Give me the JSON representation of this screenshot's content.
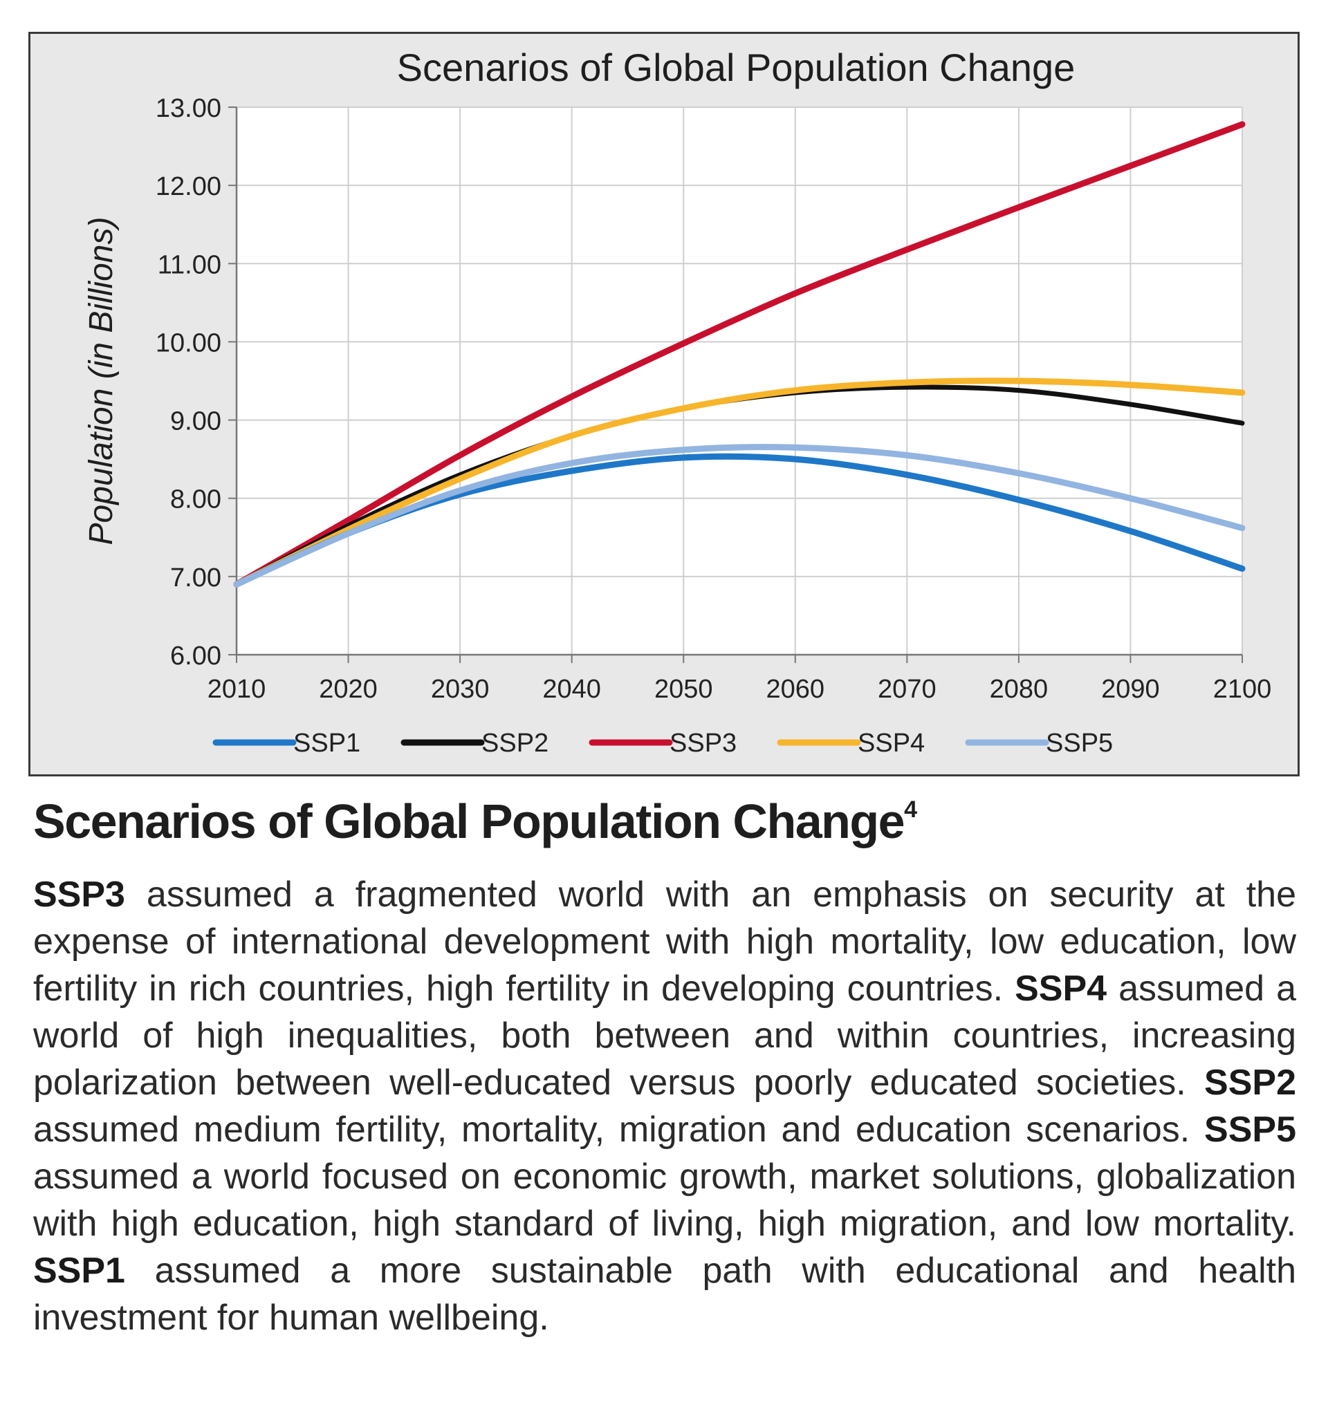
{
  "chart_data": {
    "type": "line",
    "title": "Scenarios of Global Population Change",
    "ylabel": "Population (in Billions)",
    "xlabel": "",
    "xlim": [
      2010,
      2100
    ],
    "ylim": [
      6,
      13
    ],
    "x_ticks": [
      "2010",
      "2020",
      "2030",
      "2040",
      "2050",
      "2060",
      "2070",
      "2080",
      "2090",
      "2100"
    ],
    "y_ticks": [
      "6.00",
      "7.00",
      "8.00",
      "9.00",
      "10.00",
      "11.00",
      "12.00",
      "13.00"
    ],
    "grid": true,
    "legend_position": "bottom",
    "x": [
      2010,
      2020,
      2030,
      2040,
      2050,
      2060,
      2070,
      2080,
      2090,
      2100
    ],
    "series": [
      {
        "name": "SSP1",
        "color": "#1f77c8",
        "values": [
          6.9,
          7.55,
          8.05,
          8.35,
          8.52,
          8.5,
          8.3,
          7.98,
          7.58,
          7.1
        ]
      },
      {
        "name": "SSP2",
        "color": "#111111",
        "values": [
          6.9,
          7.65,
          8.3,
          8.8,
          9.15,
          9.35,
          9.42,
          9.38,
          9.2,
          8.96
        ]
      },
      {
        "name": "SSP3",
        "color": "#c8102e",
        "values": [
          6.9,
          7.72,
          8.55,
          9.3,
          9.98,
          10.62,
          11.18,
          11.72,
          12.25,
          12.78
        ]
      },
      {
        "name": "SSP4",
        "color": "#f7b52c",
        "values": [
          6.9,
          7.6,
          8.25,
          8.8,
          9.15,
          9.38,
          9.48,
          9.5,
          9.45,
          9.35
        ]
      },
      {
        "name": "SSP5",
        "color": "#92b4e0",
        "values": [
          6.9,
          7.55,
          8.1,
          8.45,
          8.62,
          8.65,
          8.55,
          8.32,
          8.0,
          7.62
        ]
      }
    ]
  },
  "caption": {
    "heading": "Scenarios of Global Population Change",
    "heading_ref": "4",
    "paragraph": [
      {
        "label": "SSP3",
        "text": " assumed a fragmented world with an emphasis on security at the expense of international development with high mortality, low education, low fertility in rich countries, high fertility in developing countries. "
      },
      {
        "label": "SSP4",
        "text": " assumed a world of high inequalities, both between and within countries, increasing polarization between well-educated versus poorly educated societies. "
      },
      {
        "label": "SSP2",
        "text": " assumed medium fertility, mortality, migration and education scenarios. "
      },
      {
        "label": "SSP5",
        "text": " assumed a world focused on economic growth, market solutions, globalization with high education, high standard of living, high migration, and low mortality. "
      },
      {
        "label": "SSP1",
        "text": " assumed a more sustainable path with educational and health investment for human wellbeing."
      }
    ]
  }
}
